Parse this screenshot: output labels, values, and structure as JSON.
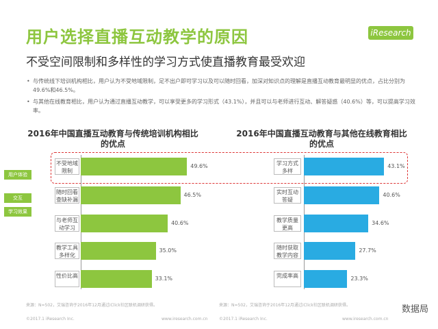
{
  "header": {
    "title": "用户选择直播互动教学的原因",
    "subtitle": "不受空间限制和多样性的学习方式使直播教育最受欢迎",
    "logo": "iResearch"
  },
  "bullets": [
    "与传统线下培训机构相比，用户认为不受地域限制，足不出户即可学习以及可以随时回看，加深对知识点的理解是直播互动教育最明显的优点，占比分别为49.6%和46.5%。",
    "与其他在线教育相比，用户认为通过直播互动教学，可以享受更多的学习形式（43.1%），并且可以与老师进行互动、解答疑惑（40.6%）等，可以提高学习效率。"
  ],
  "side_tags": [
    "用户体验",
    "交互",
    "学习效果"
  ],
  "chart_data": [
    {
      "type": "bar",
      "orientation": "horizontal",
      "title": "2016年中国直播互动教育与传统培训机构相比的优点",
      "categories": [
        "不受地域限制",
        "随时回看查缺补漏",
        "与老师互动学习",
        "教学工具多样化",
        "性价比高"
      ],
      "values": [
        49.6,
        46.5,
        40.6,
        35.0,
        33.1
      ],
      "value_labels": [
        "49.6%",
        "46.5%",
        "40.6%",
        "35.0%",
        "33.1%"
      ],
      "color": "#8dc63f"
    },
    {
      "type": "bar",
      "orientation": "horizontal",
      "title": "2016年中国直播互动教育与其他在线教育相比的优点",
      "categories": [
        "学习方式多样",
        "实时互动答疑",
        "教学质量更高",
        "随时获取教学内容",
        "完成率高"
      ],
      "values": [
        43.1,
        40.6,
        34.6,
        27.7,
        23.3
      ],
      "value_labels": [
        "43.1%",
        "40.6%",
        "34.6%",
        "27.7%",
        "23.3%"
      ],
      "color": "#29abe2"
    }
  ],
  "footer": {
    "source_left": "来源：N=502，艾瑞咨询于2016年12月通过iClick社区联机调研获得。",
    "source_right": "来源：N=502，艾瑞咨询于2016年12月通过iClick社区联机调研获得。",
    "copyright_left": "©2017.1 iResearch Inc.",
    "website_left": "www.iresearch.com.cn",
    "copyright_right": "©2017.1 iResearch Inc.",
    "website_right": "www.iresearch.com.cn",
    "watermark": "数据局"
  }
}
